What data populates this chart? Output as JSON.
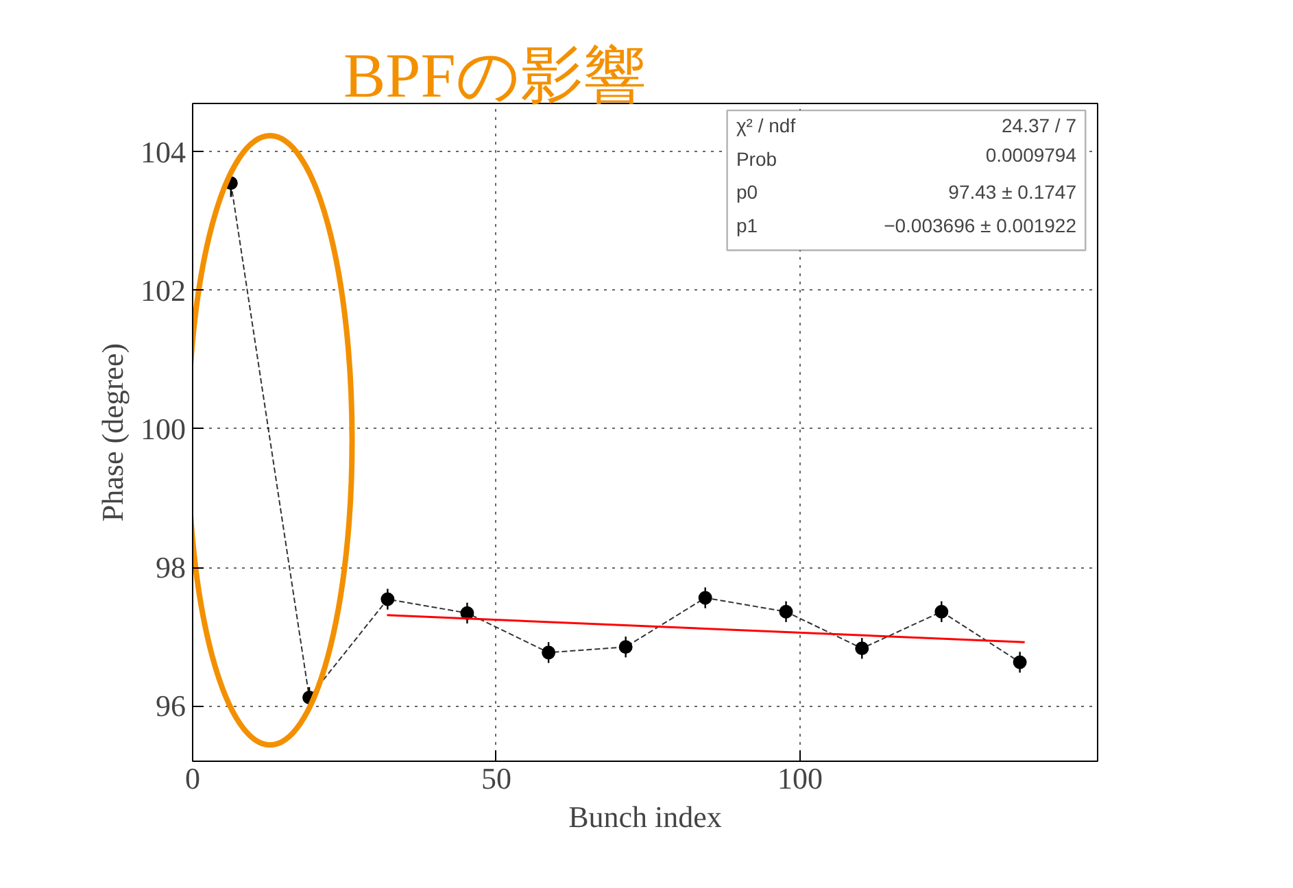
{
  "chart_data": {
    "type": "line",
    "xlabel": "Bunch index",
    "ylabel": "Phase (degree)",
    "xlim": [
      0,
      149
    ],
    "ylim": [
      95.2,
      104.7
    ],
    "xticks": [
      0,
      50,
      100
    ],
    "yticks": [
      96,
      98,
      100,
      102,
      104
    ],
    "grid": true,
    "series": [
      {
        "color": "#000000",
        "marker": "circle",
        "line_style": "dashed",
        "x": [
          6.3,
          19.2,
          32.1,
          45.2,
          58.6,
          71.3,
          84.4,
          97.7,
          110.2,
          123.3,
          136.2
        ],
        "values": [
          103.55,
          96.12,
          97.54,
          97.34,
          96.77,
          96.85,
          97.56,
          97.36,
          96.83,
          97.36,
          96.63
        ],
        "errors": [
          0.2,
          0.15,
          0.15,
          0.15,
          0.15,
          0.15,
          0.15,
          0.15,
          0.15,
          0.15,
          0.15
        ]
      },
      {
        "color": "#ff0000",
        "marker": "none",
        "line_style": "solid",
        "x": [
          32,
          137
        ],
        "values": [
          97.31,
          96.92
        ]
      }
    ],
    "annotations": [
      "χ² / ndf",
      "24.37 / 7",
      "Prob",
      "0.0009794",
      "p0",
      "97.43 ± 0.1747",
      "p1",
      "−0.003696 ± 0.001922",
      "BPFの影響"
    ]
  }
}
